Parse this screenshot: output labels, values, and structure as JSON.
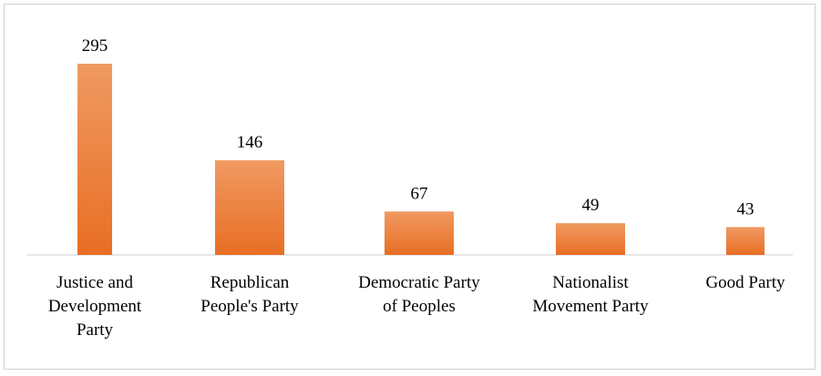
{
  "chart_data": {
    "type": "bar",
    "categories": [
      [
        "Justice and",
        "Development",
        "Party"
      ],
      [
        "Republican",
        "People's Party"
      ],
      [
        "Democratic Party",
        "of Peoples"
      ],
      [
        "Nationalist",
        "Movement Party"
      ],
      [
        "Good Party"
      ]
    ],
    "values": [
      295,
      146,
      67,
      49,
      43
    ],
    "data_labels": [
      "295",
      "146",
      "67",
      "49",
      "43"
    ],
    "title": "",
    "xlabel": "",
    "ylabel": "",
    "ylim": [
      0,
      295
    ],
    "grid": false,
    "legend": "none",
    "bar_color_top": "#f09a62",
    "bar_color_bottom": "#e86e24"
  }
}
